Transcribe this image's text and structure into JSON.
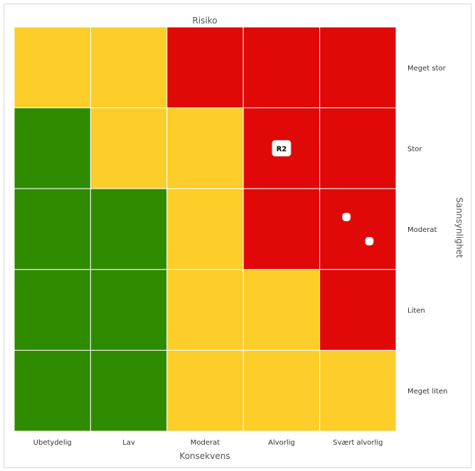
{
  "chart_data": {
    "type": "heatmap",
    "title": "Risiko",
    "xlabel": "Konsekvens",
    "ylabel": "Sannsynlighet",
    "x_categories": [
      "Ubetydelig",
      "Lav",
      "Moderat",
      "Alvorlig",
      "Svært alvorlig"
    ],
    "y_categories": [
      "Meget stor",
      "Stor",
      "Moderat",
      "Liten",
      "Meget liten"
    ],
    "cells": [
      [
        "yellow",
        "yellow",
        "red",
        "red",
        "red"
      ],
      [
        "green",
        "yellow",
        "yellow",
        "red",
        "red"
      ],
      [
        "green",
        "green",
        "yellow",
        "red",
        "red"
      ],
      [
        "green",
        "green",
        "yellow",
        "yellow",
        "red"
      ],
      [
        "green",
        "green",
        "yellow",
        "yellow",
        "yellow"
      ]
    ],
    "colors": {
      "green": "#2e8b00",
      "yellow": "#fdcd29",
      "red": "#e10808",
      "grid": "#ffffff"
    },
    "markers": [
      {
        "label": "R2",
        "consequence": "Alvorlig",
        "likelihood": "Stor"
      },
      {
        "label": "",
        "consequence": "Svært alvorlig",
        "likelihood": "Moderat"
      },
      {
        "label": "",
        "consequence": "Svært alvorlig",
        "likelihood": "Moderat"
      }
    ],
    "legend": "none"
  }
}
